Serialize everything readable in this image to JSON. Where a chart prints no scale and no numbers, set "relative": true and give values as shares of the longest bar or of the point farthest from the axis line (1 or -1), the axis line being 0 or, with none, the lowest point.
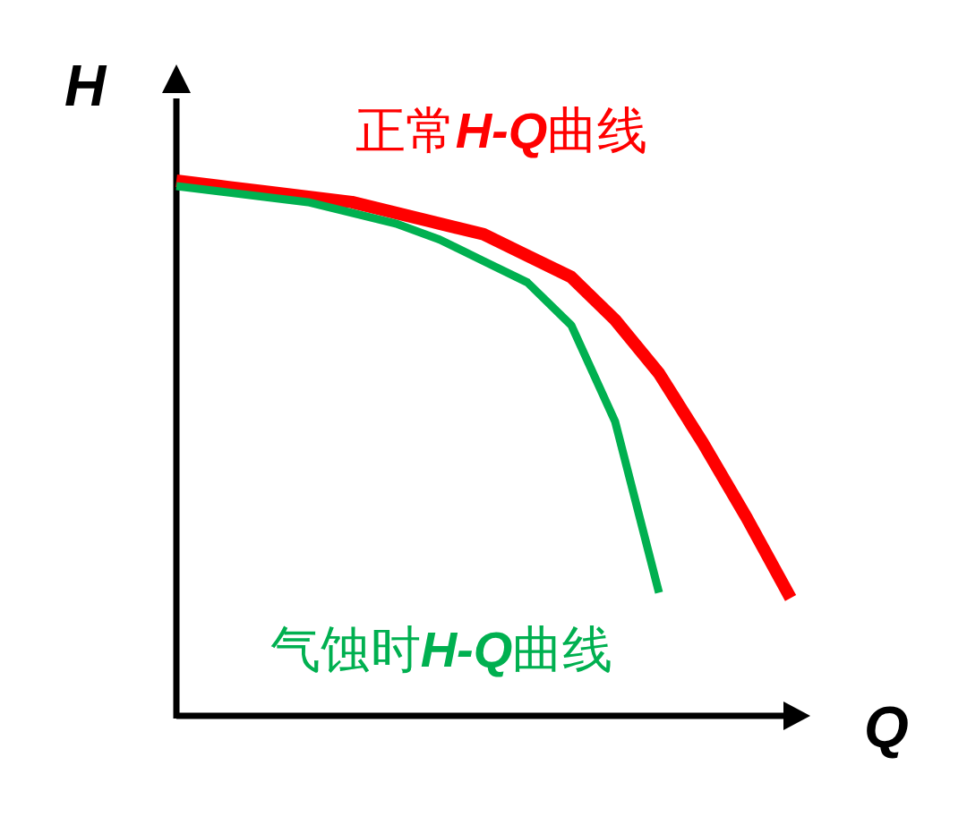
{
  "chart_data": {
    "type": "line",
    "relative": true,
    "xlabel": "Q",
    "ylabel": "H",
    "legend": false,
    "categories": [
      null,
      null,
      null,
      null,
      null,
      null,
      null,
      null,
      null,
      null,
      null,
      null,
      null,
      null,
      null
    ],
    "series": [
      {
        "name": "正常H-Q曲线",
        "color": "#ff0000",
        "values": [
          1.0,
          0.99,
          0.98,
          0.97,
          0.96,
          0.94,
          0.92,
          0.9,
          0.86,
          0.82,
          0.74,
          0.64,
          0.51,
          0.37,
          0.22
        ]
      },
      {
        "name": "气蚀时H-Q曲线",
        "color": "#00b050",
        "values": [
          0.99,
          0.98,
          0.97,
          0.96,
          0.94,
          0.92,
          0.89,
          0.85,
          0.81,
          0.73,
          0.55,
          0.23,
          null,
          null,
          null
        ]
      }
    ]
  }
}
